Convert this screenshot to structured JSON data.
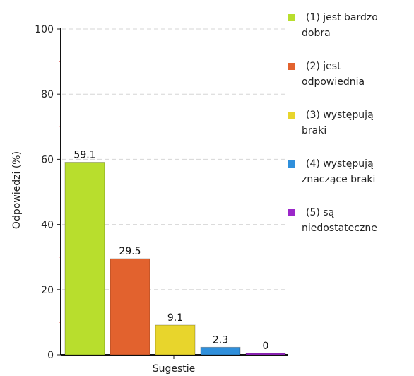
{
  "chart_data": {
    "type": "bar",
    "xlabel": "Sugestie",
    "ylabel": "Odpowiedzi (%)",
    "ylim": [
      0,
      100
    ],
    "yticks": [
      0,
      20,
      40,
      60,
      80,
      100
    ],
    "grid": true,
    "legend_position": "right",
    "bars": [
      {
        "value": 59.1,
        "label": "59.1",
        "color": "#b8de2d",
        "legend": [
          "(1) jest bardzo",
          "dobra"
        ]
      },
      {
        "value": 29.5,
        "label": "29.5",
        "color": "#e2622e",
        "legend": [
          "(2) jest",
          "odpowiednia"
        ]
      },
      {
        "value": 9.1,
        "label": "9.1",
        "color": "#e8d52c",
        "legend": [
          "(3) występują",
          "braki"
        ]
      },
      {
        "value": 2.3,
        "label": "2.3",
        "color": "#2f8fdb",
        "legend": [
          "(4) występują",
          "znaczące braki"
        ]
      },
      {
        "value": 0,
        "label": "0",
        "color": "#9b27c9",
        "legend": [
          "(5) są",
          "niedostateczne"
        ]
      }
    ]
  }
}
